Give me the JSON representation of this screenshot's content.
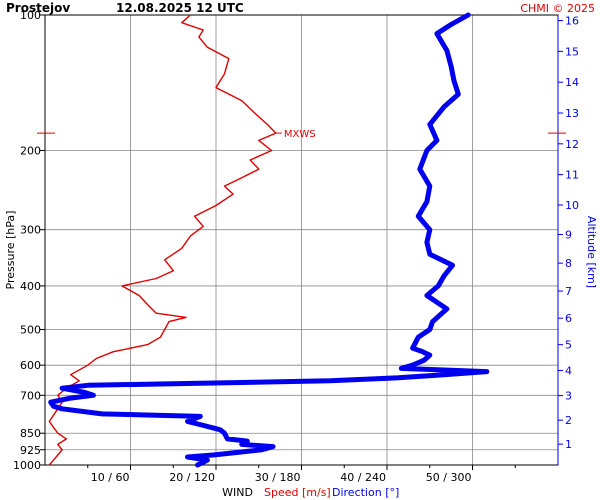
{
  "header": {
    "station": "Prostejov",
    "datetime": "12.08.2025 12 UTC",
    "copyright": "CHMI © 2025"
  },
  "colors": {
    "speed": "#e00000",
    "direction": "#0000ee",
    "grid": "#888888",
    "axis": "#000000",
    "copyright": "#e00000"
  },
  "chart_data": {
    "type": "line",
    "title": "Prostejov 12.08.2025 12 UTC",
    "y_axis": {
      "label": "Pressure [hPa]",
      "scale": "log",
      "ylim": [
        1000,
        100
      ],
      "ticks": [
        1000,
        925,
        850,
        700,
        600,
        500,
        400,
        300,
        200,
        100
      ]
    },
    "y2_axis": {
      "label": "Altitude [km]",
      "ticks": [
        1,
        2,
        3,
        4,
        5,
        6,
        7,
        8,
        9,
        10,
        11,
        12,
        13,
        14,
        15,
        16
      ]
    },
    "x_axis": {
      "label": "WIND",
      "speed_label": "Speed [m/s]",
      "direction_label": "Direction [°]",
      "speed_lim": [
        0,
        60
      ],
      "direction_lim": [
        0,
        360
      ],
      "tick_labels": [
        "10 / 60",
        "20 / 120",
        "30 / 180",
        "40 / 240",
        "50 / 300"
      ]
    },
    "annotation": {
      "text": "MXWS",
      "pressure": 183
    },
    "grid": true,
    "series": [
      {
        "name": "Speed [m/s]",
        "unit": "m/s",
        "points": [
          [
            1000,
            0.5
          ],
          [
            975,
            1
          ],
          [
            950,
            1.5
          ],
          [
            925,
            2
          ],
          [
            900,
            1.5
          ],
          [
            875,
            2.5
          ],
          [
            850,
            1.5
          ],
          [
            825,
            1
          ],
          [
            800,
            0.5
          ],
          [
            775,
            1
          ],
          [
            750,
            1.5
          ],
          [
            725,
            2
          ],
          [
            700,
            1.5
          ],
          [
            675,
            2.5
          ],
          [
            650,
            4
          ],
          [
            630,
            3
          ],
          [
            600,
            5
          ],
          [
            580,
            6
          ],
          [
            560,
            8
          ],
          [
            540,
            12
          ],
          [
            520,
            13.5
          ],
          [
            500,
            14
          ],
          [
            480,
            14.5
          ],
          [
            470,
            16.5
          ],
          [
            460,
            13
          ],
          [
            440,
            12
          ],
          [
            420,
            11
          ],
          [
            400,
            9
          ],
          [
            385,
            13
          ],
          [
            370,
            15
          ],
          [
            350,
            14
          ],
          [
            330,
            16
          ],
          [
            310,
            17
          ],
          [
            295,
            18.5
          ],
          [
            280,
            17.5
          ],
          [
            265,
            20
          ],
          [
            250,
            22
          ],
          [
            240,
            21
          ],
          [
            230,
            23
          ],
          [
            220,
            25
          ],
          [
            210,
            24
          ],
          [
            200,
            26.5
          ],
          [
            190,
            25
          ],
          [
            183,
            27
          ],
          [
            175,
            26
          ],
          [
            165,
            24.5
          ],
          [
            155,
            23
          ],
          [
            145,
            20
          ],
          [
            135,
            21
          ],
          [
            125,
            21.5
          ],
          [
            118,
            19
          ],
          [
            112,
            18
          ],
          [
            108,
            18.5
          ],
          [
            104,
            16
          ],
          [
            100,
            17
          ]
        ]
      },
      {
        "name": "Direction [°]",
        "unit": "deg",
        "points": [
          [
            1000,
            107
          ],
          [
            975,
            114
          ],
          [
            960,
            100
          ],
          [
            950,
            118
          ],
          [
            940,
            132
          ],
          [
            925,
            152
          ],
          [
            910,
            160
          ],
          [
            900,
            138
          ],
          [
            885,
            142
          ],
          [
            875,
            128
          ],
          [
            850,
            126
          ],
          [
            835,
            123
          ],
          [
            815,
            110
          ],
          [
            800,
            100
          ],
          [
            780,
            109
          ],
          [
            770,
            40
          ],
          [
            750,
            12
          ],
          [
            740,
            6
          ],
          [
            725,
            4
          ],
          [
            710,
            18
          ],
          [
            700,
            34
          ],
          [
            690,
            28
          ],
          [
            675,
            12
          ],
          [
            665,
            30
          ],
          [
            650,
            200
          ],
          [
            640,
            248
          ],
          [
            630,
            280
          ],
          [
            620,
            310
          ],
          [
            610,
            250
          ],
          [
            600,
            258
          ],
          [
            585,
            266
          ],
          [
            570,
            270
          ],
          [
            560,
            265
          ],
          [
            550,
            258
          ],
          [
            520,
            262
          ],
          [
            500,
            270
          ],
          [
            480,
            272
          ],
          [
            450,
            282
          ],
          [
            420,
            268
          ],
          [
            400,
            276
          ],
          [
            380,
            280
          ],
          [
            360,
            286
          ],
          [
            340,
            270
          ],
          [
            320,
            268
          ],
          [
            300,
            270
          ],
          [
            280,
            262
          ],
          [
            260,
            268
          ],
          [
            240,
            270
          ],
          [
            220,
            263
          ],
          [
            200,
            268
          ],
          [
            190,
            275
          ],
          [
            175,
            270
          ],
          [
            160,
            280
          ],
          [
            150,
            290
          ],
          [
            140,
            287
          ],
          [
            130,
            285
          ],
          [
            120,
            282
          ],
          [
            110,
            275
          ],
          [
            105,
            285
          ],
          [
            100,
            297
          ]
        ]
      }
    ]
  }
}
